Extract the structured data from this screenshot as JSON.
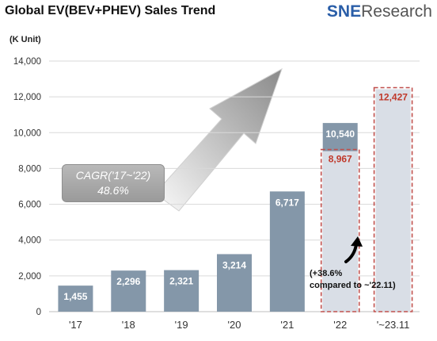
{
  "header": {
    "title": "Global EV(BEV+PHEV)  Sales Trend",
    "logo_sne": "SNE",
    "logo_research": "Research"
  },
  "colors": {
    "bar": "#8497a9",
    "forecast_fill": "#d9dee6",
    "dashed_outline": "#c0504d",
    "dashed_label": "#c0392b"
  },
  "chart_data": {
    "type": "bar",
    "unit_label": "(K Unit)",
    "ylim": [
      0,
      14000
    ],
    "yticks": [
      "0",
      "2,000",
      "4,000",
      "6,000",
      "8,000",
      "10,000",
      "12,000",
      "14,000"
    ],
    "grid": true,
    "categories": [
      "'17",
      "'18",
      "'19",
      "'20",
      "'21",
      "'22",
      "'~23.11"
    ],
    "values": [
      1455,
      2296,
      2321,
      3214,
      6717,
      10540,
      12427
    ],
    "value_labels": [
      "1,455",
      "2,296",
      "2,321",
      "3,214",
      "6,717",
      "10,540",
      "12,427"
    ],
    "comparison": {
      "category": "'22",
      "value": 8967,
      "label": "8,967"
    },
    "annotations": {
      "cagr_line1": "CAGR('17~'22)",
      "cagr_line2": "48.6%",
      "growth_line1": "(+38.6%",
      "growth_line2": "compared to ~'22.11)"
    }
  }
}
